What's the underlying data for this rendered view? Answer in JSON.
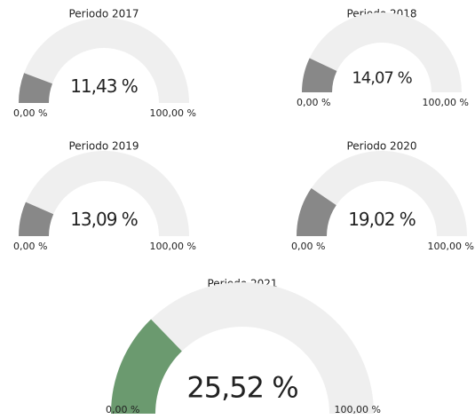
{
  "chart_data": [
    {
      "type": "gauge",
      "title": "Periodo 2017",
      "values": [
        11.43
      ],
      "value_labels": [
        "11,43 %"
      ],
      "color": "#888888",
      "ylim": [
        0,
        100
      ],
      "yticks": [
        {
          "value": 0,
          "label": "0,00 %"
        },
        {
          "value": 100,
          "label": "100,00 %"
        }
      ]
    },
    {
      "type": "gauge",
      "title": "Periodo 2018",
      "values": [
        14.07
      ],
      "value_labels": [
        "14,07 %"
      ],
      "color": "#888888",
      "ylim": [
        0,
        100
      ],
      "yticks": [
        {
          "value": 0,
          "label": "0,00 %"
        },
        {
          "value": 100,
          "label": "100,00 %"
        }
      ]
    },
    {
      "type": "gauge",
      "title": "Periodo 2019",
      "values": [
        13.09
      ],
      "value_labels": [
        "13,09 %"
      ],
      "color": "#888888",
      "ylim": [
        0,
        100
      ],
      "yticks": [
        {
          "value": 0,
          "label": "0,00 %"
        },
        {
          "value": 100,
          "label": "100,00 %"
        }
      ]
    },
    {
      "type": "gauge",
      "title": "Periodo 2020",
      "values": [
        19.02
      ],
      "value_labels": [
        "19,02 %"
      ],
      "color": "#888888",
      "ylim": [
        0,
        100
      ],
      "yticks": [
        {
          "value": 0,
          "label": "0,00 %"
        },
        {
          "value": 100,
          "label": "100,00 %"
        }
      ]
    },
    {
      "type": "gauge",
      "title": "Periodo 2021",
      "values": [
        25.52
      ],
      "value_labels": [
        "25,52 %"
      ],
      "color": "#6b9a6f",
      "ylim": [
        0,
        100
      ],
      "yticks": [
        {
          "value": 0,
          "label": "0,00 %"
        },
        {
          "value": 100,
          "label": "100,00 %"
        }
      ]
    }
  ]
}
